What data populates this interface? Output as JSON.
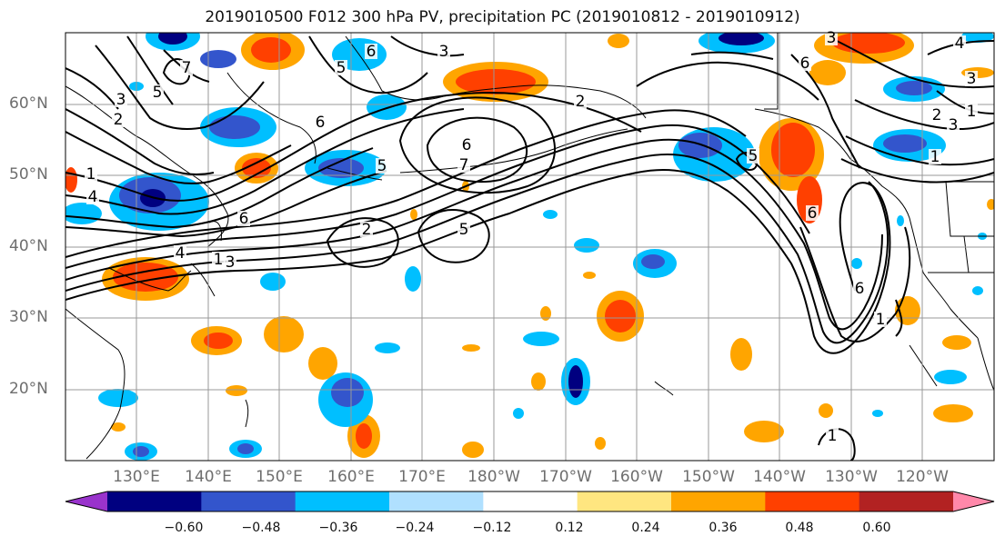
{
  "title": "2019010500 F012 300 hPa PV, precipitation PC (2019010812 - 2019010912)",
  "lat_labels": [
    "60°N",
    "50°N",
    "40°N",
    "30°N",
    "20°N"
  ],
  "lon_labels": [
    "130°E",
    "140°E",
    "150°E",
    "160°E",
    "170°E",
    "180°W",
    "170°W",
    "160°W",
    "150°W",
    "140°W",
    "130°W",
    "120°W"
  ],
  "colorbar": {
    "ticks": [
      "−0.60",
      "−0.48",
      "−0.36",
      "−0.24",
      "−0.12",
      "0.12",
      "0.24",
      "0.36",
      "0.48",
      "0.60"
    ],
    "colors": [
      "#9933cc",
      "#000080",
      "#3355cc",
      "#00bfff",
      "#b0e0ff",
      "#ffffff",
      "#ffe680",
      "#ffa500",
      "#ff4000",
      "#b22222",
      "#ff88aa"
    ]
  },
  "contour_labels": [
    "1",
    "2",
    "3",
    "4",
    "5",
    "6",
    "7",
    "1",
    "2",
    "3",
    "4",
    "5",
    "6",
    "3",
    "4",
    "6",
    "5",
    "1",
    "2",
    "3",
    "7",
    "6",
    "2",
    "5",
    "6",
    "1",
    "6",
    "1",
    "3",
    "6",
    "5",
    "3",
    "1"
  ],
  "map_data": {
    "projection": "cylindrical",
    "lon_range": [
      "120°E",
      "110°W"
    ],
    "lat_range": [
      "10°N",
      "70°N"
    ],
    "field": "300 hPa PV (contours), precipitation PC (shaded)"
  }
}
